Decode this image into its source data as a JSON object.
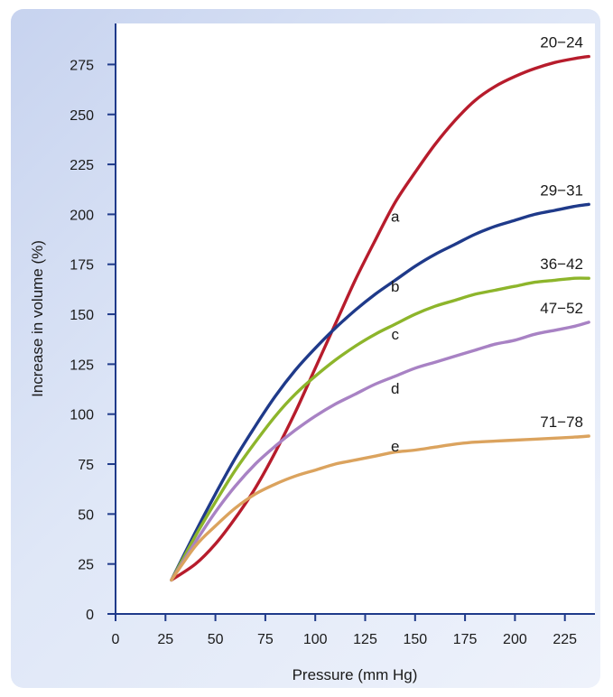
{
  "chart_data": {
    "type": "line",
    "title": "",
    "xlabel": "Pressure (mm Hg)",
    "ylabel": "Increase in volume (%)",
    "xlim": [
      0,
      240
    ],
    "ylim": [
      0,
      290
    ],
    "xticks": [
      0,
      25,
      50,
      75,
      100,
      125,
      150,
      175,
      200,
      225
    ],
    "yticks": [
      0,
      25,
      50,
      75,
      100,
      125,
      150,
      175,
      200,
      225,
      250,
      275
    ],
    "grid": false,
    "series": [
      {
        "label": "a",
        "range_label": "20−24",
        "color": "#b71c2c",
        "label_at": [
          140,
          199
        ],
        "x": [
          28,
          40,
          50,
          60,
          70,
          80,
          90,
          100,
          110,
          120,
          130,
          140,
          150,
          160,
          170,
          180,
          190,
          200,
          210,
          220,
          230,
          237
        ],
        "y": [
          17,
          25,
          35,
          48,
          63,
          81,
          101,
          123,
          145,
          167,
          187,
          206,
          221,
          235,
          247,
          257,
          264,
          269,
          273,
          276,
          278,
          279
        ]
      },
      {
        "label": "b",
        "range_label": "29−31",
        "color": "#1f3a8a",
        "label_at": [
          140,
          164
        ],
        "x": [
          28,
          40,
          50,
          60,
          70,
          80,
          90,
          100,
          110,
          120,
          130,
          140,
          150,
          160,
          170,
          180,
          190,
          200,
          210,
          220,
          230,
          237
        ],
        "y": [
          17,
          41,
          60,
          78,
          94,
          109,
          122,
          133,
          143,
          152,
          160,
          167,
          174,
          180,
          185,
          190,
          194,
          197,
          200,
          202,
          204,
          205
        ]
      },
      {
        "label": "c",
        "range_label": "36−42",
        "color": "#8db52b",
        "label_at": [
          140,
          140
        ],
        "x": [
          28,
          40,
          50,
          60,
          70,
          80,
          90,
          100,
          110,
          120,
          130,
          140,
          150,
          160,
          170,
          180,
          190,
          200,
          210,
          220,
          230,
          237
        ],
        "y": [
          17,
          39,
          56,
          72,
          86,
          99,
          110,
          119,
          127,
          134,
          140,
          145,
          150,
          154,
          157,
          160,
          162,
          164,
          166,
          167,
          168,
          168
        ]
      },
      {
        "label": "d",
        "range_label": "47−52",
        "color": "#a882c4",
        "label_at": [
          140,
          113
        ],
        "x": [
          28,
          40,
          50,
          60,
          70,
          80,
          90,
          100,
          110,
          120,
          130,
          140,
          150,
          160,
          170,
          180,
          190,
          200,
          210,
          220,
          230,
          237
        ],
        "y": [
          17,
          36,
          51,
          64,
          75,
          84,
          92,
          99,
          105,
          110,
          115,
          119,
          123,
          126,
          129,
          132,
          135,
          137,
          140,
          142,
          144,
          146
        ]
      },
      {
        "label": "e",
        "range_label": "71−78",
        "color": "#dba35e",
        "label_at": [
          140,
          84
        ],
        "x": [
          28,
          40,
          50,
          60,
          70,
          80,
          90,
          100,
          110,
          120,
          130,
          140,
          150,
          160,
          170,
          180,
          190,
          200,
          210,
          220,
          230,
          237
        ],
        "y": [
          17,
          34,
          44,
          53,
          60,
          65,
          69,
          72,
          75,
          77,
          79,
          81,
          82,
          83.5,
          85,
          86,
          86.5,
          87,
          87.5,
          88,
          88.5,
          89
        ]
      }
    ]
  }
}
